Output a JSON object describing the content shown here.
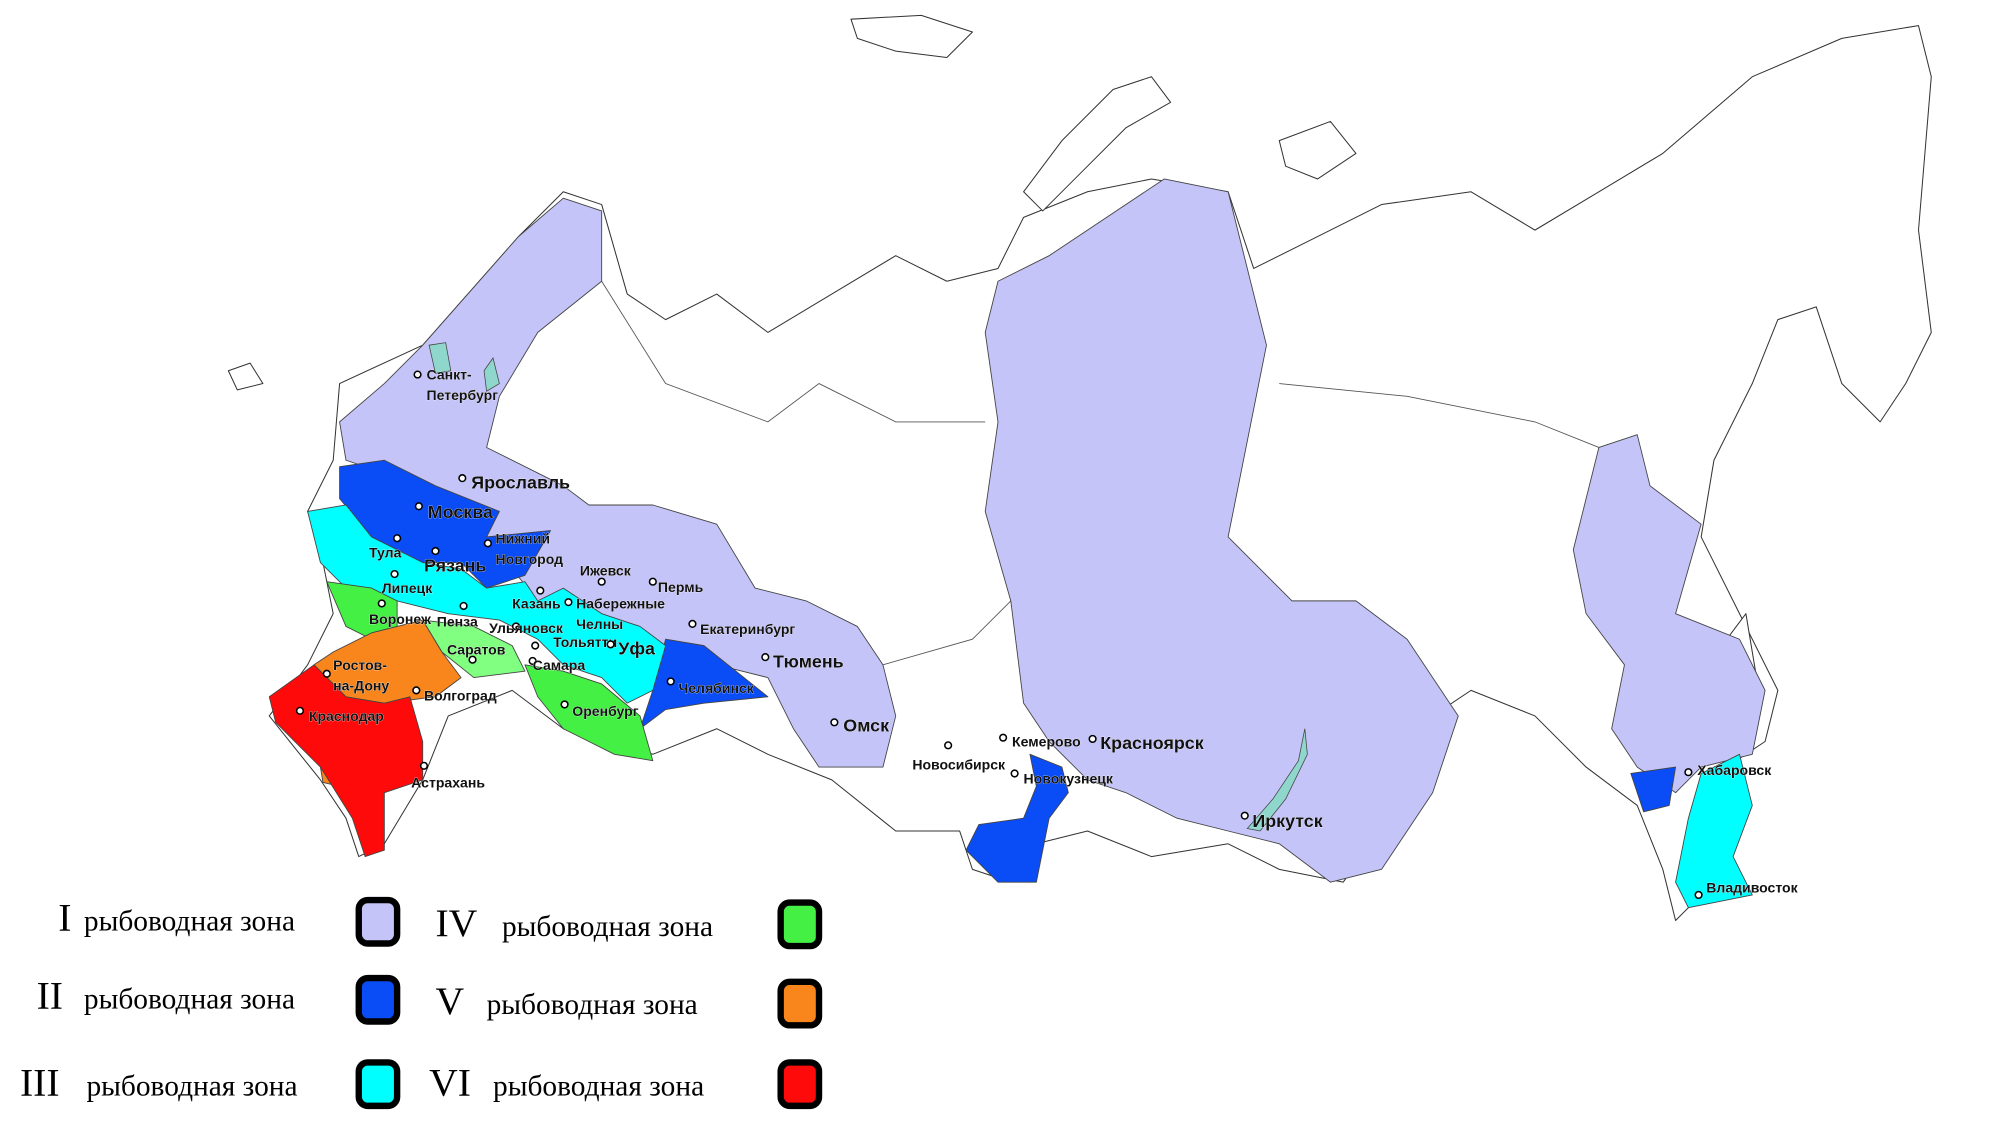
{
  "legend": [
    {
      "numeral": "I",
      "label": "рыбоводная зона",
      "color": "#c4c4f8"
    },
    {
      "numeral": "II",
      "label": "рыбоводная зона",
      "color": "#0a4cf5"
    },
    {
      "numeral": "III",
      "label": "рыбоводная зона",
      "color": "#00ffff"
    },
    {
      "numeral": "IV",
      "label": "рыбоводная зона",
      "color": "#44f044"
    },
    {
      "numeral": "V",
      "label": "рыбоводная зона",
      "color": "#f8861c"
    },
    {
      "numeral": "VI",
      "label": "рыбоводная зона",
      "color": "#ff0a0a"
    }
  ],
  "colors": {
    "zone3_light": "#80ff80",
    "water": "#8fd6cc",
    "land": "#ffffff",
    "border": "#333333"
  },
  "cities": [
    {
      "lines": [
        "Санкт-",
        "Петербург"
      ]
    },
    {
      "lines": [
        "Ярославль"
      ]
    },
    {
      "lines": [
        "Москва"
      ]
    },
    {
      "lines": [
        "Тула"
      ]
    },
    {
      "lines": [
        "Рязань"
      ]
    },
    {
      "lines": [
        "Нижний",
        "Новгород"
      ]
    },
    {
      "lines": [
        "Липецк"
      ]
    },
    {
      "lines": [
        "Ижевск"
      ]
    },
    {
      "lines": [
        "Пермь"
      ]
    },
    {
      "lines": [
        "Воронеж"
      ]
    },
    {
      "lines": [
        "Пенза"
      ]
    },
    {
      "lines": [
        "Ульяновск"
      ]
    },
    {
      "lines": [
        "Казань"
      ]
    },
    {
      "lines": [
        "Набережные",
        "Челны"
      ]
    },
    {
      "lines": [
        "Тольятти"
      ]
    },
    {
      "lines": [
        "Уфа"
      ]
    },
    {
      "lines": [
        "Самара"
      ]
    },
    {
      "lines": [
        "Саратов"
      ]
    },
    {
      "lines": [
        "Екатеринбург"
      ]
    },
    {
      "lines": [
        "Тюмень"
      ]
    },
    {
      "lines": [
        "Ростов-",
        "на-Дону"
      ]
    },
    {
      "lines": [
        "Волгоград"
      ]
    },
    {
      "lines": [
        "Челябинск"
      ]
    },
    {
      "lines": [
        "Оренбург"
      ]
    },
    {
      "lines": [
        "Краснодар"
      ]
    },
    {
      "lines": [
        "Астрахань"
      ]
    },
    {
      "lines": [
        "Омск"
      ]
    },
    {
      "lines": [
        "Новосибирск"
      ]
    },
    {
      "lines": [
        "Кемерово"
      ]
    },
    {
      "lines": [
        "Новокузнецк"
      ]
    },
    {
      "lines": [
        "Красноярск"
      ]
    },
    {
      "lines": [
        "Иркутск"
      ]
    },
    {
      "lines": [
        "Хабаровск"
      ]
    },
    {
      "lines": [
        "Владивосток"
      ]
    }
  ]
}
